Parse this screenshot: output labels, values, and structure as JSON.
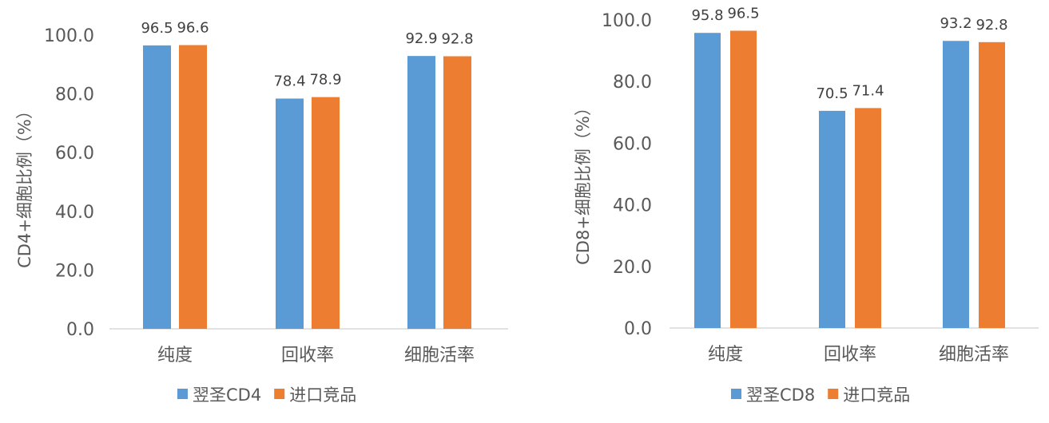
{
  "chart_data": [
    {
      "type": "bar",
      "title": "",
      "xlabel": "",
      "ylabel": "CD4+细胞比例（%）",
      "ylim": [
        0,
        100
      ],
      "y_tick_step": 20,
      "y_tick_format": "0.0",
      "grid": false,
      "legend_position": "bottom",
      "categories": [
        "纯度",
        "回收率",
        "细胞活率"
      ],
      "series": [
        {
          "name": "翌圣CD4",
          "color": "#5B9BD5",
          "values": [
            96.5,
            78.4,
            92.9
          ]
        },
        {
          "name": "进口竞品",
          "color": "#ED7D31",
          "values": [
            96.6,
            78.9,
            92.8
          ]
        }
      ]
    },
    {
      "type": "bar",
      "title": "",
      "xlabel": "",
      "ylabel": "CD8+细胞比例（%）",
      "ylim": [
        0,
        100
      ],
      "y_tick_step": 20,
      "y_tick_format": "0.0",
      "grid": false,
      "legend_position": "bottom",
      "categories": [
        "纯度",
        "回收率",
        "细胞活率"
      ],
      "series": [
        {
          "name": "翌圣CD8",
          "color": "#5B9BD5",
          "values": [
            95.8,
            70.5,
            93.2
          ]
        },
        {
          "name": "进口竞品",
          "color": "#ED7D31",
          "values": [
            96.5,
            71.4,
            92.8
          ]
        }
      ]
    }
  ]
}
